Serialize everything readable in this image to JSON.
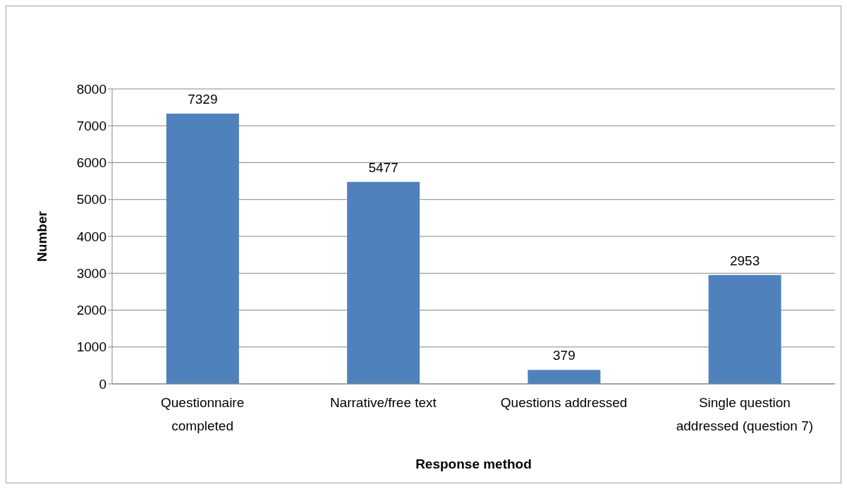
{
  "chart_data": {
    "type": "bar",
    "xlabel": "Response method",
    "ylabel": "Number",
    "categories": [
      "Questionnaire completed",
      "Narrative/free text",
      "Questions addressed",
      "Single question addressed (question 7)"
    ],
    "values": [
      7329,
      5477,
      379,
      2953
    ],
    "color": "#4f81bd",
    "ylim": [
      0,
      8000
    ],
    "yticks": [
      0,
      1000,
      2000,
      3000,
      4000,
      5000,
      6000,
      7000,
      8000
    ],
    "grid": "y",
    "data_labels": true
  }
}
